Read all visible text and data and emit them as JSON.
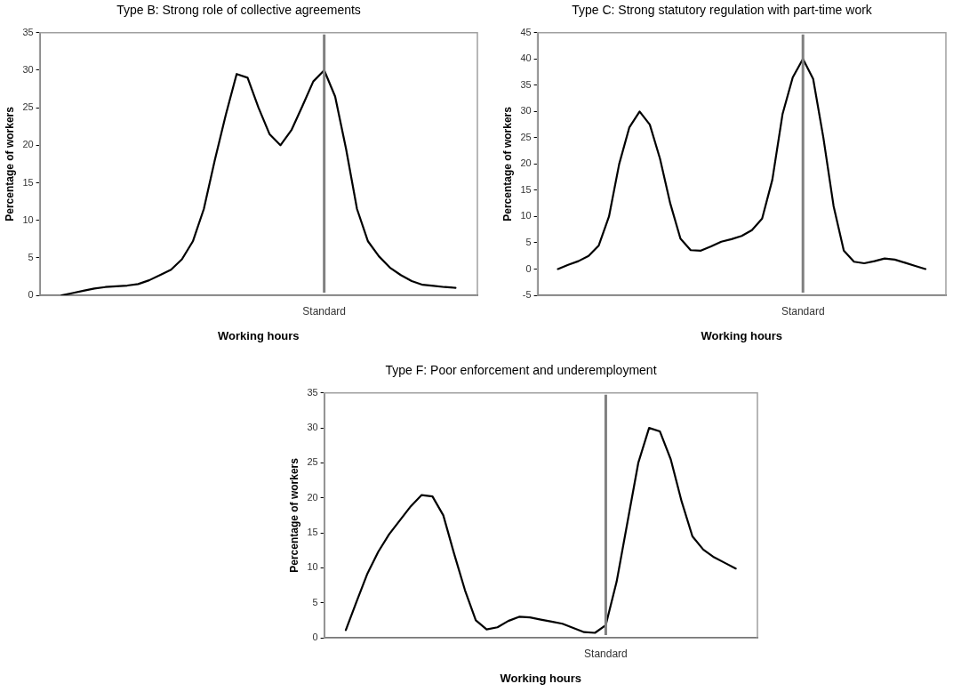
{
  "chart_data": [
    {
      "type": "line",
      "title": "Type B: Strong role of collective agreements",
      "xlabel": "Working hours",
      "ylabel": "Percentage of workers",
      "categories": [
        null,
        null,
        null,
        null,
        null,
        null,
        null,
        null,
        null,
        null,
        null,
        null,
        null,
        null,
        null,
        null,
        null,
        null,
        null,
        null,
        null,
        null,
        null,
        null,
        null,
        null,
        "Standard",
        null,
        null,
        null,
        null,
        null,
        null,
        null,
        null,
        null,
        null,
        null,
        null,
        null,
        null
      ],
      "ylim": [
        0,
        35
      ],
      "yticks": [
        0,
        5,
        10,
        15,
        20,
        25,
        30,
        35
      ],
      "grid": false,
      "legend": false,
      "marker": "none",
      "ref_lines": [
        {
          "axis": "x",
          "value": "Standard",
          "color": "#808080"
        }
      ],
      "series": [
        {
          "color": "#000000",
          "values": [
            null,
            null,
            0,
            0.3,
            0.6,
            0.9,
            1.1,
            1.2,
            1.3,
            1.5,
            2,
            2.7,
            3.4,
            4.8,
            7.2,
            11.5,
            18,
            24,
            29.5,
            29,
            25,
            21.5,
            20,
            22,
            25.2,
            28.5,
            30,
            26.5,
            19.5,
            11.5,
            7.2,
            5.2,
            3.7,
            2.7,
            1.9,
            1.4,
            1.25,
            1.1,
            1.0,
            null,
            null
          ]
        }
      ]
    },
    {
      "type": "line",
      "title": "Type C: Strong statutory regulation with part-time work",
      "xlabel": "Working hours",
      "ylabel": "Percentage of workers",
      "categories": [
        null,
        null,
        null,
        null,
        null,
        null,
        null,
        null,
        null,
        null,
        null,
        null,
        null,
        null,
        null,
        null,
        null,
        null,
        null,
        null,
        null,
        null,
        null,
        null,
        null,
        null,
        "Standard",
        null,
        null,
        null,
        null,
        null,
        null,
        null,
        null,
        null,
        null,
        null,
        null,
        null,
        null
      ],
      "ylim": [
        -5,
        45
      ],
      "yticks": [
        -5,
        0,
        5,
        10,
        15,
        20,
        25,
        30,
        35,
        40,
        45
      ],
      "grid": false,
      "legend": false,
      "marker": "none",
      "ref_lines": [
        {
          "axis": "x",
          "value": "Standard",
          "color": "#808080"
        }
      ],
      "series": [
        {
          "color": "#000000",
          "values": [
            null,
            null,
            0,
            0.8,
            1.5,
            2.5,
            4.5,
            10,
            20,
            27,
            30,
            27.5,
            21,
            12.5,
            5.8,
            3.6,
            3.5,
            4.3,
            5.2,
            5.7,
            6.3,
            7.4,
            9.6,
            17,
            29.5,
            36.5,
            40,
            36.2,
            25,
            12,
            3.5,
            1.4,
            1.1,
            1.5,
            2,
            1.8,
            1.2,
            0.6,
            0,
            null,
            null
          ]
        }
      ]
    },
    {
      "type": "line",
      "title": "Type F: Poor enforcement and underemployment",
      "xlabel": "Working hours",
      "ylabel": "Percentage of workers",
      "categories": [
        null,
        null,
        null,
        null,
        null,
        null,
        null,
        null,
        null,
        null,
        null,
        null,
        null,
        null,
        null,
        null,
        null,
        null,
        null,
        null,
        null,
        null,
        null,
        null,
        null,
        null,
        "Standard",
        null,
        null,
        null,
        null,
        null,
        null,
        null,
        null,
        null,
        null,
        null,
        null,
        null,
        null
      ],
      "ylim": [
        0,
        35
      ],
      "yticks": [
        0,
        5,
        10,
        15,
        20,
        25,
        30,
        35
      ],
      "grid": false,
      "legend": false,
      "marker": "none",
      "ref_lines": [
        {
          "axis": "x",
          "value": "Standard",
          "color": "#808080"
        }
      ],
      "series": [
        {
          "color": "#000000",
          "values": [
            null,
            null,
            1.1,
            5.2,
            9.2,
            12.3,
            14.8,
            16.8,
            18.8,
            20.4,
            20.2,
            17.5,
            12,
            6.8,
            2.5,
            1.2,
            1.5,
            2.4,
            3.0,
            2.9,
            2.6,
            2.3,
            2.0,
            1.4,
            0.8,
            0.7,
            1.8,
            8,
            16.5,
            25,
            30,
            29.5,
            25.5,
            19.5,
            14.5,
            12.6,
            11.5,
            10.7,
            9.9,
            null,
            null
          ]
        }
      ]
    }
  ]
}
